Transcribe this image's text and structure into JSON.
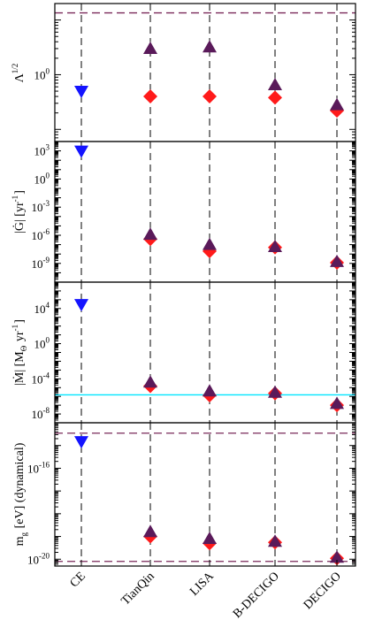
{
  "chart_data": {
    "type": "scatter",
    "categories": [
      "CE",
      "TianQin",
      "LISA",
      "B-DECIGO",
      "DECIGO"
    ],
    "panels": [
      {
        "id": "lambda",
        "ylabel_main": "Λ",
        "ylabel_sup": "1/2",
        "ylabel_sub": "",
        "ylabel_rest": "",
        "scale": "log",
        "ylim": [
          0.06,
          20
        ],
        "ticks": [
          {
            "v": 1,
            "base": "10",
            "exp": "0"
          }
        ],
        "reference_lines": [
          {
            "value": 13.5,
            "style": "dashed",
            "color": "#7a2a5a"
          }
        ],
        "series": [
          {
            "name": "",
            "marker": "triangle-down",
            "color": "#1414ff",
            "points": [
              {
                "x": "CE",
                "y": 0.5
              }
            ]
          },
          {
            "name": "",
            "marker": "diamond",
            "color": "#ff1a1a",
            "points": [
              {
                "x": "TianQin",
                "y": 0.4
              },
              {
                "x": "LISA",
                "y": 0.4
              },
              {
                "x": "B-DECIGO",
                "y": 0.38
              },
              {
                "x": "DECIGO",
                "y": 0.22
              }
            ]
          },
          {
            "name": "",
            "marker": "triangle-up",
            "color": "#5a1a5a",
            "points": [
              {
                "x": "TianQin",
                "y": 3.0
              },
              {
                "x": "LISA",
                "y": 3.2
              },
              {
                "x": "B-DECIGO",
                "y": 0.65
              },
              {
                "x": "DECIGO",
                "y": 0.28
              }
            ]
          }
        ]
      },
      {
        "id": "gdot",
        "ylabel_main": "|Ġ| [yr",
        "ylabel_sup": "-1",
        "ylabel_sub": "",
        "ylabel_rest": "]",
        "scale": "log",
        "ylim": [
          1e-11,
          10000.0
        ],
        "ticks": [
          {
            "v": 1000.0,
            "base": "10",
            "exp": "3"
          },
          {
            "v": 1,
            "base": "10",
            "exp": "0"
          },
          {
            "v": 0.001,
            "base": "10",
            "exp": "-3"
          },
          {
            "v": 1e-06,
            "base": "10",
            "exp": "-6"
          },
          {
            "v": 1e-09,
            "base": "10",
            "exp": "-9"
          }
        ],
        "reference_lines": [],
        "series": [
          {
            "name": "",
            "marker": "triangle-down",
            "color": "#1414ff",
            "points": [
              {
                "x": "CE",
                "y": 1000
              }
            ]
          },
          {
            "name": "",
            "marker": "diamond",
            "color": "#ff1a1a",
            "points": [
              {
                "x": "TianQin",
                "y": 4e-07
              },
              {
                "x": "LISA",
                "y": 2e-08
              },
              {
                "x": "B-DECIGO",
                "y": 5e-08
              },
              {
                "x": "DECIGO",
                "y": 1.2e-09
              }
            ]
          },
          {
            "name": "",
            "marker": "triangle-up",
            "color": "#5a1a5a",
            "points": [
              {
                "x": "TianQin",
                "y": 1.2e-06
              },
              {
                "x": "LISA",
                "y": 1e-07
              },
              {
                "x": "B-DECIGO",
                "y": 6e-08
              },
              {
                "x": "DECIGO",
                "y": 1.5e-09
              }
            ]
          }
        ]
      },
      {
        "id": "mdot",
        "ylabel_main": "|Ṁ| [M",
        "ylabel_sup": "",
        "ylabel_sub": "Θ",
        "ylabel_rest": " yr",
        "ylabel_sup2": "-1",
        "ylabel_end": "]",
        "scale": "log",
        "ylim": [
          1e-09,
          10000000.0
        ],
        "ticks": [
          {
            "v": 10000.0,
            "base": "10",
            "exp": "4"
          },
          {
            "v": 1,
            "base": "10",
            "exp": "0"
          },
          {
            "v": 0.0001,
            "base": "10",
            "exp": "-4"
          },
          {
            "v": 1e-08,
            "base": "10",
            "exp": "-8"
          }
        ],
        "reference_lines": [
          {
            "value": 1.5e-06,
            "style": "solid",
            "color": "#00e5ff"
          }
        ],
        "series": [
          {
            "name": "",
            "marker": "triangle-down",
            "color": "#1414ff",
            "points": [
              {
                "x": "CE",
                "y": 30000
              }
            ]
          },
          {
            "name": "",
            "marker": "diamond",
            "color": "#ff1a1a",
            "points": [
              {
                "x": "TianQin",
                "y": 1.5e-05
              },
              {
                "x": "LISA",
                "y": 1.3e-06
              },
              {
                "x": "B-DECIGO",
                "y": 2.2e-06
              },
              {
                "x": "DECIGO",
                "y": 1e-07
              }
            ]
          },
          {
            "name": "",
            "marker": "triangle-up",
            "color": "#5a1a5a",
            "points": [
              {
                "x": "TianQin",
                "y": 4e-05
              },
              {
                "x": "LISA",
                "y": 4e-06
              },
              {
                "x": "B-DECIGO",
                "y": 2.8e-06
              },
              {
                "x": "DECIGO",
                "y": 1.5e-07
              }
            ]
          }
        ]
      },
      {
        "id": "mg",
        "ylabel_main": "m",
        "ylabel_sup": "",
        "ylabel_sub": "g",
        "ylabel_rest": " [eV] (dynamical)",
        "scale": "log",
        "ylim": [
          5e-21,
          1e-14
        ],
        "ticks": [
          {
            "v": 1e-16,
            "base": "10",
            "exp": "-16"
          },
          {
            "v": 1e-20,
            "base": "10",
            "exp": "-20"
          }
        ],
        "reference_lines": [
          {
            "value": 3.5e-15,
            "style": "dashed",
            "color": "#7a2a5a"
          },
          {
            "value": 8e-21,
            "style": "dashed",
            "color": "#7a2a5a"
          }
        ],
        "series": [
          {
            "name": "",
            "marker": "triangle-down",
            "color": "#1414ff",
            "points": [
              {
                "x": "CE",
                "y": 1.5e-15
              }
            ]
          },
          {
            "name": "",
            "marker": "diamond",
            "color": "#ff1a1a",
            "points": [
              {
                "x": "TianQin",
                "y": 1e-19
              },
              {
                "x": "LISA",
                "y": 5e-20
              },
              {
                "x": "B-DECIGO",
                "y": 5.5e-20
              },
              {
                "x": "DECIGO",
                "y": 1.1e-20
              }
            ]
          },
          {
            "name": "",
            "marker": "triangle-up",
            "color": "#5a1a5a",
            "points": [
              {
                "x": "TianQin",
                "y": 1.6e-19
              },
              {
                "x": "LISA",
                "y": 8e-20
              },
              {
                "x": "B-DECIGO",
                "y": 6e-20
              },
              {
                "x": "DECIGO",
                "y": 1.2e-20
              }
            ]
          }
        ]
      }
    ]
  }
}
